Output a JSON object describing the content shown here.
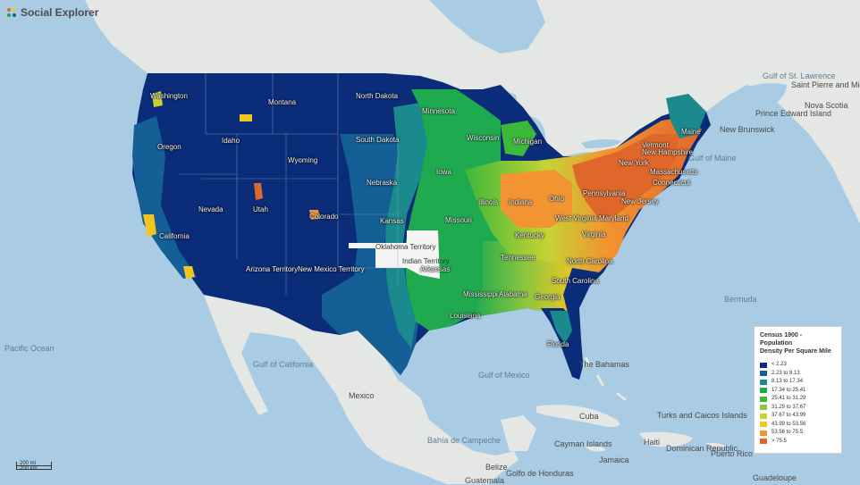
{
  "brand": {
    "name": "Social Explorer"
  },
  "legend": {
    "title_line1": "Census 1900 - Population",
    "title_line2": "Density Per Square Mile",
    "items": [
      {
        "label": "< 2.23",
        "color": "#0b2c78"
      },
      {
        "label": "2.23 to 8.13",
        "color": "#135f96"
      },
      {
        "label": "8.13 to 17.34",
        "color": "#1a8a8c"
      },
      {
        "label": "17.34 to 25.41",
        "color": "#1faa4f"
      },
      {
        "label": "25.41 to 31.29",
        "color": "#3cb83a"
      },
      {
        "label": "31.29 to 37.67",
        "color": "#8cc63f"
      },
      {
        "label": "37.67 to 43.99",
        "color": "#c6d334"
      },
      {
        "label": "43.99 to 53.56",
        "color": "#f2c521"
      },
      {
        "label": "53.56 to 75.5",
        "color": "#f29431"
      },
      {
        "label": "> 75.5",
        "color": "#e0672a"
      }
    ]
  },
  "scale": {
    "miles": "200 mi",
    "km": "200 km"
  },
  "labels": {
    "states": [
      "Washington",
      "Montana",
      "North Dakota",
      "Minnesota",
      "Oregon",
      "Idaho",
      "South Dakota",
      "Wisconsin",
      "Michigan",
      "Wyoming",
      "Iowa",
      "Nebraska",
      "Nevada",
      "Utah",
      "Colorado",
      "Kansas",
      "Missouri",
      "Illinois",
      "Indiana",
      "Ohio",
      "Pennsylvania",
      "New York",
      "Vermont",
      "New Hampshire",
      "Massachusetts",
      "Connecticut",
      "New Jersey",
      "Maryland",
      "West Virginia",
      "Virginia",
      "Kentucky",
      "Tennessee",
      "North Carolina",
      "South Carolina",
      "California",
      "Arkansas",
      "Mississippi",
      "Alabama",
      "Georgia",
      "Louisiana",
      "Florida",
      "Maine"
    ],
    "territories": {
      "oklahoma": "Oklahoma Territory",
      "indian": "Indian Territory",
      "arizona": "Arizona Territory",
      "new_mexico": "New Mexico Territory"
    },
    "oceans": {
      "pacific": "Pacific Ocean",
      "gulf_california": "Gulf of California",
      "gulf_mexico": "Gulf of Mexico",
      "gulf_stlawrence": "Gulf of St. Lawrence",
      "bay_campeche": "Bahía de Campeche",
      "bermuda": "Bermuda"
    },
    "countries": {
      "mexico": "Mexico",
      "cuba": "Cuba",
      "bahamas": "The Bahamas",
      "dominican": "Dominican Republic",
      "belize": "Belize",
      "turks": "Turks and Caicos Islands",
      "guadeloupe": "Guadeloupe",
      "haiti": "Haiti",
      "saint_pierre": "Saint Pierre and Miquelon",
      "prince_edward": "Prince Edward Island",
      "nova_scotia": "Nova Scotia",
      "cayman": "Cayman Islands",
      "jamaica": "Jamaica",
      "puerto_rico": "Puerto Rico",
      "guatemala": "Guatemala",
      "honduras": "Golfo de Honduras",
      "new_brunswick": "New Brunswick",
      "gulf_maine": "Gulf of Maine"
    }
  }
}
